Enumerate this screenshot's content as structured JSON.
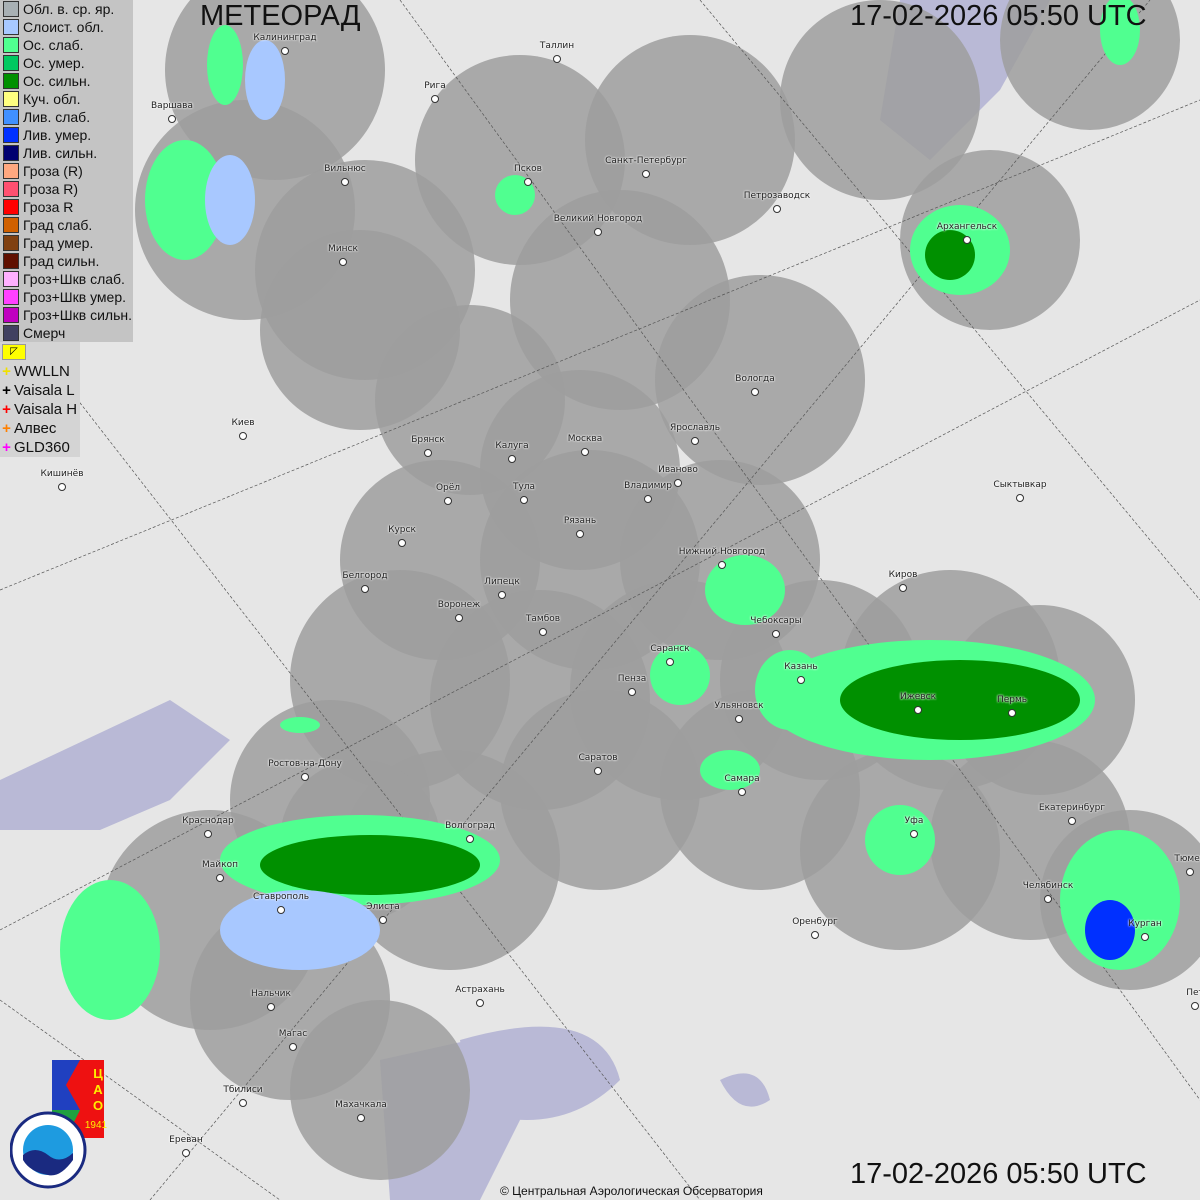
{
  "header": {
    "title": "МЕТЕОРАД",
    "timestamp_top": "17-02-2026  05:50 UTC",
    "timestamp_bottom": "17-02-2026  05:50 UTC"
  },
  "legend": [
    {
      "label": "Обл. в. ср. яр.",
      "color": "#a8b0b4"
    },
    {
      "label": "Слоист. обл.",
      "color": "#a8c8ff"
    },
    {
      "label": "Ос. слаб.",
      "color": "#50ff90"
    },
    {
      "label": "Ос. умер.",
      "color": "#00c860"
    },
    {
      "label": "Ос. сильн.",
      "color": "#009000"
    },
    {
      "label": "Куч. обл.",
      "color": "#ffff80"
    },
    {
      "label": "Лив. слаб.",
      "color": "#4090ff"
    },
    {
      "label": "Лив. умер.",
      "color": "#0030ff"
    },
    {
      "label": "Лив. сильн.",
      "color": "#000070"
    },
    {
      "label": "Гроза (R)",
      "color": "#ffa880"
    },
    {
      "label": "Гроза R)",
      "color": "#ff5070"
    },
    {
      "label": "Гроза R",
      "color": "#ff0000"
    },
    {
      "label": "Град слаб.",
      "color": "#d06000"
    },
    {
      "label": "Град умер.",
      "color": "#804010"
    },
    {
      "label": "Град сильн.",
      "color": "#601000"
    },
    {
      "label": "Гроз+Шкв слаб.",
      "color": "#ffb0ff"
    },
    {
      "label": "Гроз+Шкв умер.",
      "color": "#ff40ff"
    },
    {
      "label": "Гроз+Шкв сильн.",
      "color": "#c000c0"
    },
    {
      "label": "Смерч",
      "color": "#404060"
    }
  ],
  "radar_button": {
    "icon": "arrow-corner-icon",
    "color": "#ffff00"
  },
  "lightning": [
    {
      "label": "WWLLN",
      "color": "#f0e000"
    },
    {
      "label": "Vaisala L",
      "color": "#000000"
    },
    {
      "label": "Vaisala H",
      "color": "#ff0000"
    },
    {
      "label": "Алвес",
      "color": "#ff8000"
    },
    {
      "label": "GLD360",
      "color": "#ff00ff"
    }
  ],
  "cities": [
    "Калининград",
    "Таллин",
    "Рига",
    "Варшава",
    "Вильнюс",
    "Псков",
    "Санкт-Петербург",
    "Петрозаводск",
    "Великий Новгород",
    "Архангельск",
    "Минск",
    "Вологда",
    "Киев",
    "Брянск",
    "Калуга",
    "Москва",
    "Ярославль",
    "Иваново",
    "Кишинёв",
    "Орёл",
    "Тула",
    "Владимир",
    "Сыктывкар",
    "Курск",
    "Рязань",
    "Нижний Новгород",
    "Белгород",
    "Липецк",
    "Киров",
    "Воронеж",
    "Тамбов",
    "Чебоксары",
    "Саранск",
    "Казань",
    "Пенза",
    "Ижевск",
    "Пермь",
    "Ульяновск",
    "Ростов-на-Дону",
    "Саратов",
    "Самара",
    "Краснодар",
    "Волгоград",
    "Уфа",
    "Екатеринбург",
    "Тюмен",
    "Майкоп",
    "Челябинск",
    "Ставрополь",
    "Элиста",
    "Оренбург",
    "Курган",
    "Нальчик",
    "Астрахань",
    "Пет",
    "Магас",
    "Тбилиси",
    "Махачкала",
    "Ереван"
  ],
  "logos": {
    "tsao": "ЦАО 1941",
    "roshydromet": "РОСГИДРОМЕТ ROSHYDROMET"
  },
  "copyright": "© Центральная Аэрологическая Обсерватория",
  "colors": {
    "land": "#e6e6e6",
    "water": "#b9b9d6",
    "radar_coverage": "#9e9e9e"
  }
}
